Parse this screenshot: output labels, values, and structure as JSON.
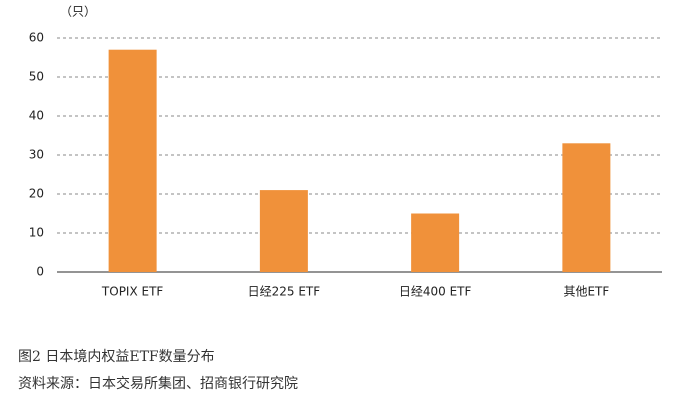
{
  "chart_data": {
    "type": "bar",
    "y_unit": "（只）",
    "categories": [
      "TOPIX ETF",
      "日经225 ETF",
      "日经400 ETF",
      "其他ETF"
    ],
    "values": [
      57,
      21,
      15,
      33
    ],
    "color": "#f0913a",
    "ylim": [
      0,
      60
    ],
    "yticks": [
      0,
      10,
      20,
      30,
      40,
      50,
      60
    ],
    "grid": true
  },
  "caption": {
    "figure": "图2 日本境内权益ETF数量分布",
    "source": "资料来源：日本交易所集团、招商银行研究院"
  }
}
